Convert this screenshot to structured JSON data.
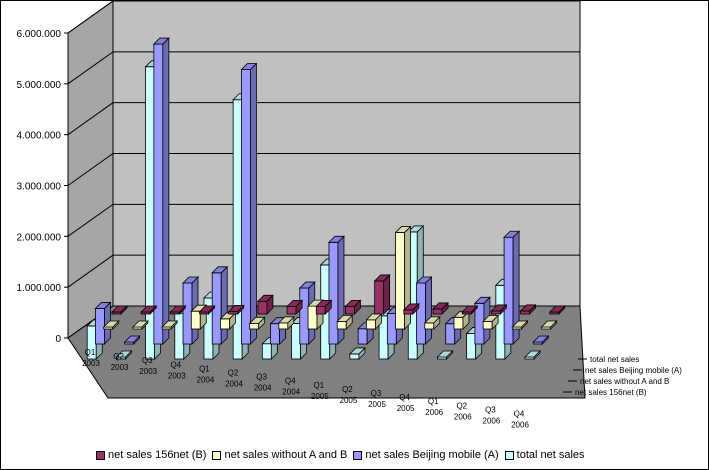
{
  "colors": {
    "wall": "#c0c0c0",
    "floor": "#808080",
    "gridline": "#000000"
  },
  "chart_data": {
    "type": "bar",
    "subtype": "3d-clustered-columns",
    "title": "",
    "xlabel": "",
    "ylabel": "",
    "ylim": [
      0,
      6000000
    ],
    "yticks": [
      "0",
      "1.000.000",
      "2.000.000",
      "3.000.000",
      "4.000.000",
      "5.000.000",
      "6.000.000"
    ],
    "categories": [
      [
        "Q1",
        "2003"
      ],
      [
        "Q2",
        "2003"
      ],
      [
        "Q3",
        "2003"
      ],
      [
        "Q4",
        "2003"
      ],
      [
        "Q1",
        "2004"
      ],
      [
        "Q2",
        "2004"
      ],
      [
        "Q3",
        "2004"
      ],
      [
        "Q4",
        "2004"
      ],
      [
        "Q1",
        "2005"
      ],
      [
        "Q2",
        "2005"
      ],
      [
        "Q3",
        "2005"
      ],
      [
        "Q4",
        "2005"
      ],
      [
        "Q1",
        "2006"
      ],
      [
        "Q2",
        "2006"
      ],
      [
        "Q3",
        "2006"
      ],
      [
        "Q4",
        "2006"
      ]
    ],
    "depth_labels": [
      "total net sales",
      "net sales Beijing mobile (A)",
      "net sales without A and B",
      "net sales 156net (B)"
    ],
    "series": [
      {
        "name": "net sales 156net (B)",
        "color": "#993366",
        "values": [
          0,
          0,
          0,
          0,
          50000,
          250000,
          150000,
          150000,
          150000,
          650000,
          80000,
          100000,
          0,
          60000,
          60000,
          0
        ]
      },
      {
        "name": "net sales without A  and B",
        "color": "#ffffcc",
        "values": [
          20000,
          30000,
          30000,
          350000,
          200000,
          110000,
          120000,
          450000,
          150000,
          180000,
          1900000,
          120000,
          230000,
          150000,
          0,
          0
        ]
      },
      {
        "name": "net sales Beijing mobile (A)",
        "color": "#9999ff",
        "values": [
          700000,
          0,
          5900000,
          1200000,
          1400000,
          5400000,
          400000,
          1100000,
          2000000,
          300000,
          600000,
          1200000,
          400000,
          800000,
          2100000,
          0
        ]
      },
      {
        "name": "total net sales",
        "color": "#ccffff",
        "values": [
          650000,
          0,
          5750000,
          900000,
          1200000,
          5100000,
          300000,
          700000,
          1850000,
          100000,
          850000,
          2500000,
          0,
          500000,
          1450000,
          0
        ]
      }
    ],
    "grid": true,
    "legend": "bottom"
  }
}
